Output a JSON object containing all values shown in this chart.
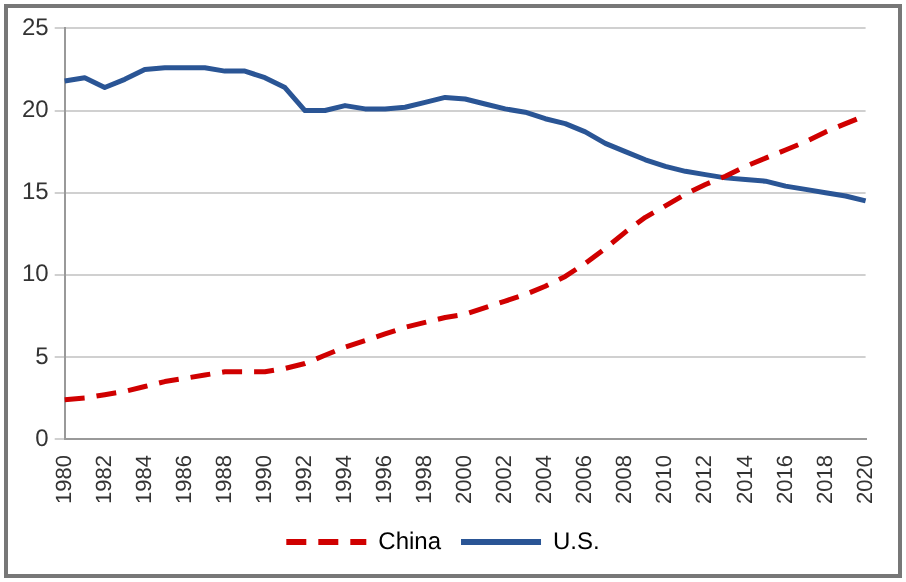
{
  "chart_data": {
    "type": "line",
    "categories": [
      "1980",
      null,
      "1982",
      null,
      "1984",
      null,
      "1986",
      null,
      "1988",
      null,
      "1990",
      null,
      "1992",
      null,
      "1994",
      null,
      "1996",
      null,
      "1998",
      null,
      "2000",
      null,
      "2002",
      null,
      "2004",
      null,
      "2006",
      null,
      "2008",
      null,
      "2010",
      null,
      "2012",
      null,
      "2014",
      null,
      "2016",
      null,
      "2018",
      null,
      "2020"
    ],
    "series": [
      {
        "name": "China",
        "color": "#d00000",
        "line_style": "dashed",
        "values": [
          2.4,
          2.5,
          2.7,
          2.9,
          3.2,
          3.5,
          3.7,
          3.9,
          4.1,
          4.1,
          4.1,
          4.3,
          4.6,
          5.1,
          5.6,
          6.0,
          6.4,
          6.8,
          7.1,
          7.4,
          7.6,
          8.0,
          8.4,
          8.8,
          9.3,
          9.9,
          10.7,
          11.6,
          12.6,
          13.5,
          14.2,
          14.9,
          15.5,
          16.0,
          16.6,
          17.1,
          17.6,
          18.1,
          18.7,
          19.2,
          19.7
        ]
      },
      {
        "name": "U.S.",
        "color": "#2a5595",
        "line_style": "solid",
        "values": [
          21.8,
          22.0,
          21.4,
          21.9,
          22.5,
          22.6,
          22.6,
          22.6,
          22.4,
          22.4,
          22.0,
          21.4,
          20.0,
          20.0,
          20.3,
          20.1,
          20.1,
          20.2,
          20.5,
          20.8,
          20.7,
          20.4,
          20.1,
          19.9,
          19.5,
          19.2,
          18.7,
          18.0,
          17.5,
          17.0,
          16.6,
          16.3,
          16.1,
          15.9,
          15.8,
          15.7,
          15.4,
          15.2,
          15.0,
          14.8,
          14.5
        ]
      }
    ],
    "ylim": [
      0,
      25
    ],
    "yticks": [
      0,
      5,
      10,
      15,
      20,
      25
    ],
    "grid": "y",
    "legend": "bottom",
    "marker": "none"
  }
}
